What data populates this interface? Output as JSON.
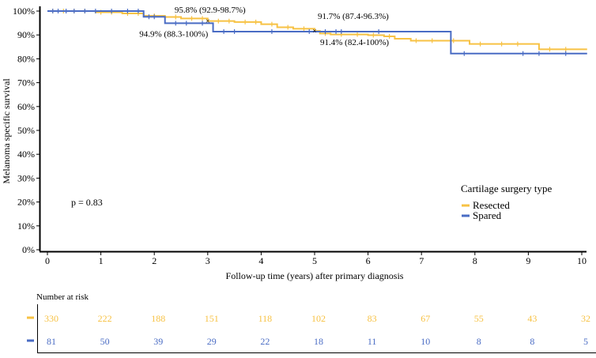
{
  "chart_data": {
    "type": "line",
    "subtype": "kaplan-meier",
    "xlabel": "Follow-up time (years) after primary diagnosis",
    "ylabel": "Melanoma specific survival",
    "xlim": [
      0,
      10.1
    ],
    "ylim": [
      0,
      100
    ],
    "xticks": [
      "0",
      "1",
      "2",
      "3",
      "4",
      "5",
      "6",
      "7",
      "8",
      "9",
      "10"
    ],
    "yticks": [
      "0%",
      "10%",
      "20%",
      "30%",
      "40%",
      "50%",
      "60%",
      "70%",
      "80%",
      "90%",
      "100%"
    ],
    "p_value": "p = 0.83",
    "legend": {
      "title": "Cartilage surgery type",
      "placement": "right",
      "entries": [
        "Resected",
        "Spared"
      ]
    },
    "series": [
      {
        "name": "Resected",
        "color": "#F7C244",
        "steps": [
          [
            0,
            100
          ],
          [
            0.9,
            99.5
          ],
          [
            1.4,
            99
          ],
          [
            1.8,
            98
          ],
          [
            2.2,
            97.5
          ],
          [
            2.5,
            96.9
          ],
          [
            3.0,
            95.8
          ],
          [
            3.5,
            95.4
          ],
          [
            4.0,
            94.5
          ],
          [
            4.3,
            93.2
          ],
          [
            4.6,
            92.6
          ],
          [
            5.0,
            91.7
          ],
          [
            5.1,
            90.6
          ],
          [
            5.3,
            90.2
          ],
          [
            6.0,
            89.9
          ],
          [
            6.3,
            89.4
          ],
          [
            6.5,
            88.4
          ],
          [
            6.8,
            87.6
          ],
          [
            7.9,
            86.2
          ],
          [
            9.2,
            84.0
          ],
          [
            10.1,
            84.0
          ]
        ],
        "censors": [
          0.1,
          0.3,
          0.5,
          0.7,
          1.0,
          1.2,
          1.5,
          1.7,
          2.0,
          2.4,
          2.7,
          2.9,
          3.2,
          3.4,
          3.7,
          3.9,
          4.2,
          4.5,
          4.8,
          5.2,
          5.5,
          5.8,
          6.1,
          6.4,
          6.9,
          7.2,
          7.6,
          8.1,
          8.5,
          8.8,
          9.4,
          9.7
        ]
      },
      {
        "name": "Spared",
        "color": "#4A6CC4",
        "steps": [
          [
            0,
            100
          ],
          [
            1.8,
            97.6
          ],
          [
            2.2,
            94.9
          ],
          [
            3.1,
            91.4
          ],
          [
            7.55,
            82.2
          ],
          [
            10.1,
            82.2
          ]
        ],
        "censors": [
          0.1,
          0.2,
          0.35,
          0.5,
          0.7,
          0.9,
          1.2,
          1.5,
          1.7,
          1.9,
          2.0,
          2.4,
          2.6,
          2.9,
          3.3,
          3.5,
          4.2,
          4.9,
          5.2,
          5.4,
          5.5,
          6.2,
          7.8,
          8.9,
          9.2,
          9.7
        ]
      }
    ],
    "annotations": [
      {
        "x": 3,
        "series": "Resected",
        "label": "95.8% (92.9-98.7%)",
        "y": 95.8
      },
      {
        "x": 3,
        "series": "Spared",
        "label": "94.9% (88.3-100%)",
        "y": 94.9
      },
      {
        "x": 5,
        "series": "Resected",
        "label": "91.7% (87.4-96.3%)",
        "y": 91.7
      },
      {
        "x": 5,
        "series": "Spared",
        "label": "91.4% (82.4-100%)",
        "y": 91.4
      }
    ],
    "risk_table": {
      "title": "Number at risk",
      "rows": [
        {
          "name": "Resected",
          "values": [
            "330",
            "222",
            "188",
            "151",
            "118",
            "102",
            "83",
            "67",
            "55",
            "43",
            "32"
          ]
        },
        {
          "name": "Spared",
          "values": [
            "81",
            "50",
            "39",
            "29",
            "22",
            "18",
            "11",
            "10",
            "8",
            "8",
            "5"
          ]
        }
      ]
    }
  }
}
